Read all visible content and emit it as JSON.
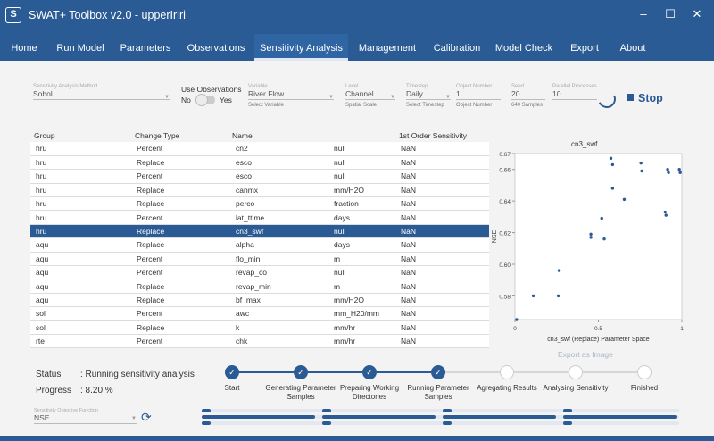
{
  "window": {
    "title": "SWAT+ Toolbox v2.0 - upperIriri",
    "app_icon": "S",
    "minimize": "–",
    "maximize": "☐",
    "close": "✕"
  },
  "nav": {
    "items": [
      "Home",
      "Run Model",
      "Parameters",
      "Observations",
      "Sensitivity Analysis",
      "Management",
      "Calibration",
      "Model Check",
      "Export",
      "About"
    ],
    "active": "Sensitivity Analysis"
  },
  "settings": {
    "method": {
      "label": "Sensitivity Analysis Method",
      "value": "Sobol"
    },
    "use_observations": {
      "label": "Use Observations",
      "no": "No",
      "yes": "Yes"
    },
    "variable": {
      "label": "Variable",
      "value": "River Flow",
      "hint": "Select Variable"
    },
    "level": {
      "label": "Level",
      "value": "Channel",
      "hint": "Spatial Scale"
    },
    "timestep": {
      "label": "Timestep",
      "value": "Daily",
      "hint": "Select Timestep"
    },
    "object_number": {
      "label": "Object Number",
      "value": "1",
      "hint": "Object Number"
    },
    "seed": {
      "label": "Seed",
      "value": "20",
      "hint": "640 Samples"
    },
    "parallel": {
      "label": "Parallel Processes",
      "value": "10"
    },
    "stop_label": "Stop"
  },
  "table": {
    "headers": [
      "Group",
      "Change Type",
      "Name",
      "",
      "1st Order Sensitivity"
    ],
    "rows": [
      [
        "hru",
        "Percent",
        "cn2",
        "null",
        "NaN"
      ],
      [
        "hru",
        "Replace",
        "esco",
        "null",
        "NaN"
      ],
      [
        "hru",
        "Percent",
        "esco",
        "null",
        "NaN"
      ],
      [
        "hru",
        "Replace",
        "canmx",
        "mm/H2O",
        "NaN"
      ],
      [
        "hru",
        "Replace",
        "perco",
        "fraction",
        "NaN"
      ],
      [
        "hru",
        "Percent",
        "lat_ttime",
        "days",
        "NaN"
      ],
      [
        "hru",
        "Replace",
        "cn3_swf",
        "null",
        "NaN"
      ],
      [
        "aqu",
        "Replace",
        "alpha",
        "days",
        "NaN"
      ],
      [
        "aqu",
        "Percent",
        "flo_min",
        "m",
        "NaN"
      ],
      [
        "aqu",
        "Percent",
        "revap_co",
        "null",
        "NaN"
      ],
      [
        "aqu",
        "Replace",
        "revap_min",
        "m",
        "NaN"
      ],
      [
        "aqu",
        "Replace",
        "bf_max",
        "mm/H2O",
        "NaN"
      ],
      [
        "sol",
        "Percent",
        "awc",
        "mm_H20/mm",
        "NaN"
      ],
      [
        "sol",
        "Replace",
        "k",
        "mm/hr",
        "NaN"
      ],
      [
        "rte",
        "Percent",
        "chk",
        "mm/hr",
        "NaN"
      ]
    ],
    "selected_index": 6
  },
  "chart_data": {
    "type": "scatter",
    "title": "cn3_swf",
    "xlabel": "cn3_swf (Replace) Parameter Space",
    "ylabel": "NSE",
    "xlim": [
      0,
      1
    ],
    "ylim": [
      0.565,
      0.67
    ],
    "x_ticks": [
      "0",
      "0.5",
      "1"
    ],
    "y_ticks": [
      "0.58",
      "0.60",
      "0.62",
      "0.64",
      "0.66",
      "0.67"
    ],
    "y_tick_values": [
      0.58,
      0.6,
      0.62,
      0.64,
      0.66,
      0.67
    ],
    "x": [
      0.01,
      0.11,
      0.26,
      0.265,
      0.455,
      0.455,
      0.52,
      0.535,
      0.575,
      0.585,
      0.585,
      0.655,
      0.755,
      0.76,
      0.9,
      0.905,
      0.915,
      0.92,
      0.985,
      0.99
    ],
    "y": [
      0.565,
      0.58,
      0.58,
      0.596,
      0.619,
      0.617,
      0.629,
      0.616,
      0.667,
      0.648,
      0.663,
      0.641,
      0.664,
      0.659,
      0.633,
      0.631,
      0.66,
      0.658,
      0.66,
      0.658
    ],
    "export_label": "Export as Image"
  },
  "status": {
    "status_label": "Status",
    "status_value": ": Running sensitivity analysis",
    "progress_label": "Progress",
    "progress_value": ": 8.20 %"
  },
  "steps": [
    {
      "label": "Start",
      "done": true
    },
    {
      "label": "Generating Parameter Samples",
      "done": true
    },
    {
      "label": "Preparing Working Directories",
      "done": true
    },
    {
      "label": "Running Parameter Samples",
      "done": true
    },
    {
      "label": "Agregating Results",
      "done": false
    },
    {
      "label": "Analysing Sensitivity",
      "done": false
    },
    {
      "label": "Finished",
      "done": false
    }
  ],
  "objective": {
    "label": "Sensitivity Objective Function",
    "value": "NSE"
  },
  "colors": {
    "primary": "#2b5b94",
    "background": "#f3f3f3"
  }
}
